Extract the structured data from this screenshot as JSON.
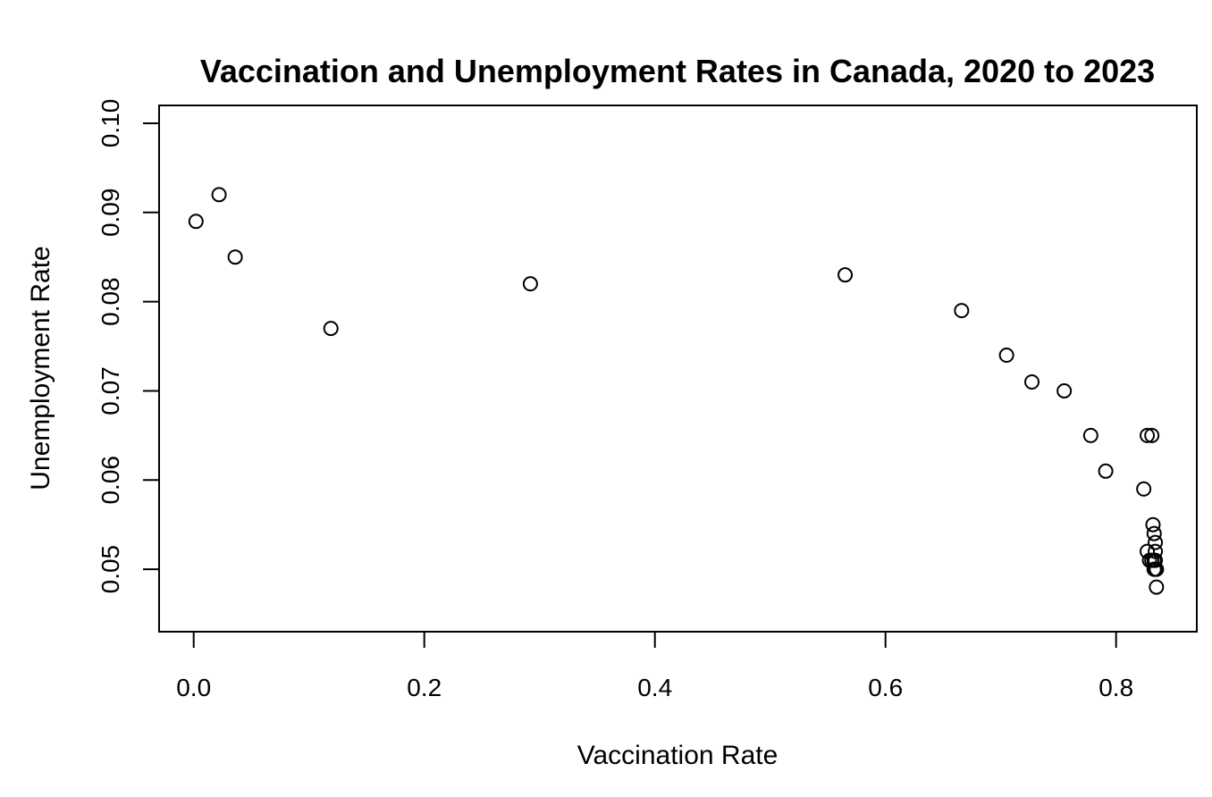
{
  "chart_data": {
    "type": "scatter",
    "title": "Vaccination and Unemployment Rates in Canada, 2020 to 2023",
    "xlabel": "Vaccination Rate",
    "ylabel": "Unemployment Rate",
    "xlim": [
      -0.03,
      0.87
    ],
    "ylim": [
      0.043,
      0.102
    ],
    "x_ticks": [
      0.0,
      0.2,
      0.4,
      0.6,
      0.8
    ],
    "x_tick_labels": [
      "0.0",
      "0.2",
      "0.4",
      "0.6",
      "0.8"
    ],
    "y_ticks": [
      0.05,
      0.06,
      0.07,
      0.08,
      0.09,
      0.1
    ],
    "y_tick_labels": [
      "0.05",
      "0.06",
      "0.07",
      "0.08",
      "0.09",
      "0.10"
    ],
    "grid": false,
    "legend": "none",
    "marker": "open-circle",
    "point_color": "#000000",
    "points": [
      {
        "x": 0.002,
        "y": 0.089
      },
      {
        "x": 0.022,
        "y": 0.092
      },
      {
        "x": 0.036,
        "y": 0.085
      },
      {
        "x": 0.119,
        "y": 0.077
      },
      {
        "x": 0.292,
        "y": 0.082
      },
      {
        "x": 0.565,
        "y": 0.083
      },
      {
        "x": 0.666,
        "y": 0.079
      },
      {
        "x": 0.705,
        "y": 0.074
      },
      {
        "x": 0.727,
        "y": 0.071
      },
      {
        "x": 0.755,
        "y": 0.07
      },
      {
        "x": 0.778,
        "y": 0.065
      },
      {
        "x": 0.791,
        "y": 0.061
      },
      {
        "x": 0.824,
        "y": 0.059
      },
      {
        "x": 0.827,
        "y": 0.065
      },
      {
        "x": 0.831,
        "y": 0.065
      },
      {
        "x": 0.827,
        "y": 0.052
      },
      {
        "x": 0.829,
        "y": 0.051
      },
      {
        "x": 0.831,
        "y": 0.051
      },
      {
        "x": 0.832,
        "y": 0.055
      },
      {
        "x": 0.833,
        "y": 0.054
      },
      {
        "x": 0.834,
        "y": 0.053
      },
      {
        "x": 0.834,
        "y": 0.052
      },
      {
        "x": 0.833,
        "y": 0.051
      },
      {
        "x": 0.834,
        "y": 0.051
      },
      {
        "x": 0.833,
        "y": 0.05
      },
      {
        "x": 0.834,
        "y": 0.05
      },
      {
        "x": 0.835,
        "y": 0.05
      },
      {
        "x": 0.835,
        "y": 0.048
      }
    ]
  }
}
